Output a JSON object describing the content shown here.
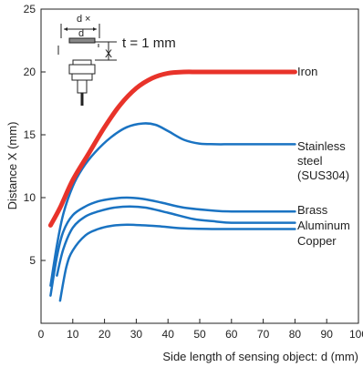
{
  "chart_data": {
    "type": "line",
    "xlabel": "Side length of sensing object: d (mm)",
    "ylabel": "Distance X (mm)",
    "xlim": [
      0,
      100
    ],
    "ylim": [
      0,
      25
    ],
    "x_ticks": [
      "0",
      "10",
      "20",
      "30",
      "40",
      "50",
      "60",
      "70",
      "80",
      "90",
      "100"
    ],
    "y_ticks": [
      "5",
      "10",
      "15",
      "20",
      "25"
    ],
    "grid": false,
    "inset_note": "t = 1 mm",
    "inset_labels": {
      "d_top": "d",
      "x_mark": "×",
      "d_side": "d",
      "x_label": "X"
    },
    "series": [
      {
        "name": "Iron",
        "label_lines": [
          "Iron"
        ],
        "color": "#e8332a",
        "width": 5,
        "x": [
          3,
          6,
          10,
          15,
          20,
          25,
          30,
          35,
          40,
          45,
          50,
          60,
          70,
          80
        ],
        "y": [
          7.8,
          9.2,
          11.4,
          13.5,
          15.6,
          17.4,
          18.7,
          19.5,
          19.9,
          20.0,
          20.0,
          20.0,
          20.0,
          20.0
        ]
      },
      {
        "name": "Stainless steel (SUS304)",
        "label_lines": [
          "Stainless",
          "steel",
          "(SUS304)"
        ],
        "color": "#1a73c2",
        "width": 2.5,
        "x": [
          3,
          5,
          7,
          10,
          13,
          17,
          22,
          27,
          32,
          36,
          40,
          45,
          50,
          55,
          60,
          70,
          80
        ],
        "y": [
          3.0,
          6.2,
          8.7,
          10.9,
          12.3,
          13.6,
          14.8,
          15.6,
          15.9,
          15.8,
          15.3,
          14.6,
          14.3,
          14.25,
          14.25,
          14.25,
          14.25
        ]
      },
      {
        "name": "Brass",
        "label_lines": [
          "Brass"
        ],
        "color": "#1a73c2",
        "width": 2.5,
        "x": [
          3,
          5,
          7,
          10,
          14,
          18,
          22,
          27,
          32,
          38,
          45,
          55,
          60,
          70,
          80
        ],
        "y": [
          2.2,
          5.3,
          7.3,
          8.6,
          9.3,
          9.7,
          9.9,
          10.0,
          9.9,
          9.6,
          9.2,
          8.95,
          8.9,
          8.9,
          8.9
        ]
      },
      {
        "name": "Aluminum",
        "label_lines": [
          "Aluminum"
        ],
        "color": "#1a73c2",
        "width": 2.5,
        "x": [
          5,
          7,
          10,
          14,
          18,
          23,
          28,
          33,
          40,
          48,
          55,
          60,
          70,
          80
        ],
        "y": [
          3.8,
          5.9,
          7.6,
          8.5,
          8.9,
          9.2,
          9.3,
          9.2,
          8.8,
          8.3,
          8.1,
          8.0,
          8.0,
          8.0
        ]
      },
      {
        "name": "Copper",
        "label_lines": [
          "Copper"
        ],
        "color": "#1a73c2",
        "width": 2.5,
        "x": [
          6,
          8,
          10,
          14,
          18,
          22,
          27,
          32,
          38,
          45,
          55,
          60,
          70,
          80
        ],
        "y": [
          1.8,
          4.5,
          5.8,
          7.0,
          7.5,
          7.75,
          7.85,
          7.8,
          7.7,
          7.55,
          7.5,
          7.5,
          7.5,
          7.5
        ]
      }
    ]
  }
}
